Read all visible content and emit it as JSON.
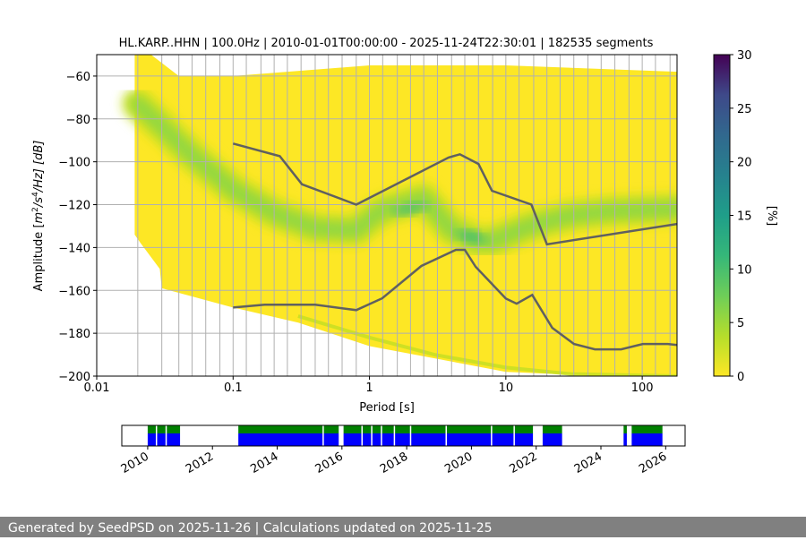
{
  "chart_data": [
    {
      "type": "heatmap",
      "title": "HL.KARP..HHN | 100.0Hz | 2010-01-01T00:00:00 - 2025-11-24T22:30:01 | 182535 segments",
      "xlabel": "Period [s]",
      "ylabel": "Amplitude [m²/s⁴/Hz] [dB]",
      "ylabel_parts": {
        "pre": "Amplitude [",
        "m": "m",
        "sup2": "2",
        "s": "/s",
        "sup4": "4",
        "post": "/Hz] [dB]"
      },
      "x_scale": "log",
      "xlim": [
        0.01,
        180
      ],
      "ylim": [
        -200,
        -50
      ],
      "x_ticks": [
        0.01,
        0.1,
        1,
        10,
        100
      ],
      "x_tick_labels": [
        "0.01",
        "0.1",
        "1",
        "10",
        "100"
      ],
      "y_ticks": [
        -60,
        -80,
        -100,
        -120,
        -140,
        -160,
        -180,
        -200
      ],
      "y_tick_labels": [
        "−60",
        "−80",
        "−100",
        "−120",
        "−140",
        "−160",
        "−180",
        "−200"
      ],
      "grid": true,
      "colormap": "viridis",
      "colorbar": {
        "label": "[%]",
        "min": 0,
        "max": 30,
        "ticks": [
          0,
          5,
          10,
          15,
          20,
          25,
          30
        ],
        "tick_labels": [
          "0",
          "5",
          "10",
          "15",
          "20",
          "25",
          "30"
        ]
      },
      "density_mode": {
        "period": [
          0.02,
          0.05,
          0.1,
          0.2,
          0.4,
          0.8,
          1.2,
          2.5,
          4,
          5,
          6,
          8,
          15,
          30,
          60,
          180
        ],
        "amplitude_db": [
          -73,
          -97,
          -113,
          -124,
          -131,
          -132,
          -123,
          -117,
          -132,
          -134,
          -137,
          -137,
          -130,
          -125,
          -123,
          -122
        ]
      },
      "series": [
        {
          "name": "NHNM",
          "period": [
            0.1,
            0.22,
            0.32,
            0.8,
            3.8,
            4.6,
            6.3,
            7.9,
            15.4,
            20,
            180
          ],
          "amplitude_db": [
            -91.5,
            -97.4,
            -110.5,
            -120,
            -98,
            -96.5,
            -101,
            -113.5,
            -120,
            -138.5,
            -129
          ]
        },
        {
          "name": "NLNM",
          "period": [
            0.1,
            0.17,
            0.4,
            0.8,
            1.24,
            2.4,
            4.3,
            5,
            6,
            10,
            12,
            15.6,
            21.9,
            31.6,
            45,
            70,
            101,
            154,
            180
          ],
          "amplitude_db": [
            -168,
            -166.7,
            -166.7,
            -169.2,
            -163.7,
            -148.6,
            -141.1,
            -141.1,
            -149,
            -163.8,
            -166.2,
            -162.1,
            -177.5,
            -185,
            -187.5,
            -187.5,
            -185,
            -185,
            -185.5
          ]
        }
      ]
    },
    {
      "type": "timeline",
      "xlim": [
        2009.2,
        2026.6
      ],
      "x_ticks": [
        2010,
        2012,
        2014,
        2016,
        2018,
        2020,
        2022,
        2024,
        2026
      ],
      "x_tick_labels": [
        "2010",
        "2012",
        "2014",
        "2016",
        "2018",
        "2020",
        "2022",
        "2024",
        "2026"
      ],
      "data_availability": [
        [
          2010.0,
          2011.0
        ],
        [
          2012.8,
          2015.9
        ],
        [
          2016.05,
          2021.9
        ],
        [
          2022.2,
          2022.8
        ],
        [
          2024.7,
          2024.8
        ],
        [
          2024.95,
          2025.9
        ]
      ],
      "colors": {
        "data": "#0000ff",
        "computed": "#008000"
      }
    }
  ],
  "footer": {
    "text": "Generated by SeedPSD on 2025-11-26 | Calculations updated on 2025-11-25"
  }
}
